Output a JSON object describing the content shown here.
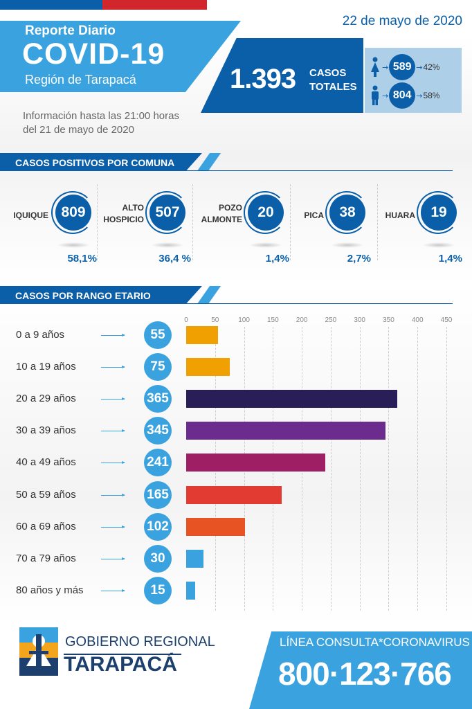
{
  "header": {
    "date": "22 de mayo de 2020",
    "report_label": "Reporte Diario",
    "title": "COVID-19",
    "region": "Región de Tarapacá",
    "info_line1": "Información hasta las 21:00 horas",
    "info_line2": "del 21 de mayo de 2020"
  },
  "totals": {
    "cases": "1.393",
    "cases_label_1": "CASOS",
    "cases_label_2": "TOTALES",
    "female": {
      "icon": "female-icon",
      "value": "589",
      "pct": "42%"
    },
    "male": {
      "icon": "male-icon",
      "value": "804",
      "pct": "58%"
    }
  },
  "comunas_section": {
    "title": "CASOS POSITIVOS POR COMUNA",
    "items": [
      {
        "name_1": "IQUIQUE",
        "name_2": "",
        "value": "809",
        "pct": "58,1%"
      },
      {
        "name_1": "ALTO",
        "name_2": "HOSPICIO",
        "value": "507",
        "pct": "36,4 %"
      },
      {
        "name_1": "POZO",
        "name_2": "ALMONTE",
        "value": "20",
        "pct": "1,4%"
      },
      {
        "name_1": "PICA",
        "name_2": "",
        "value": "38",
        "pct": "2,7%"
      },
      {
        "name_1": "HUARA",
        "name_2": "",
        "value": "19",
        "pct": "1,4%"
      }
    ]
  },
  "age_section": {
    "title": "CASOS POR RANGO ETARIO"
  },
  "chart_data": {
    "type": "bar",
    "orientation": "horizontal",
    "categories": [
      "0 a 9 años",
      "10 a 19 años",
      "20 a 29 años",
      "30 a 39 años",
      "40 a 49 años",
      "50 a 59 años",
      "60 a 69 años",
      "70 a 79 años",
      "80 años y más"
    ],
    "values": [
      55,
      75,
      365,
      345,
      241,
      165,
      102,
      30,
      15
    ],
    "bar_colors": [
      "#f0a000",
      "#f0a000",
      "#2a1e58",
      "#6b2c8e",
      "#9e1f63",
      "#e23b32",
      "#e85324",
      "#3aa2de",
      "#3aa2de"
    ],
    "xticks": [
      "0",
      "50",
      "100",
      "150",
      "200",
      "250",
      "300",
      "350",
      "400",
      "450"
    ],
    "xlim": [
      0,
      450
    ],
    "grid": true
  },
  "footer": {
    "gov_line1": "GOBIERNO REGIONAL",
    "gov_line2": "TARAPACÁ",
    "logo_icon": "tarapaca-crest-icon",
    "hotline_label": "LÍNEA CONSULTA*CORONAVIRUS",
    "hotline_number": "800·123·766"
  },
  "colors": {
    "primary": "#0a5fa8",
    "accent": "#3aa2de",
    "red": "#d0262c",
    "navy": "#1c3f6e"
  }
}
